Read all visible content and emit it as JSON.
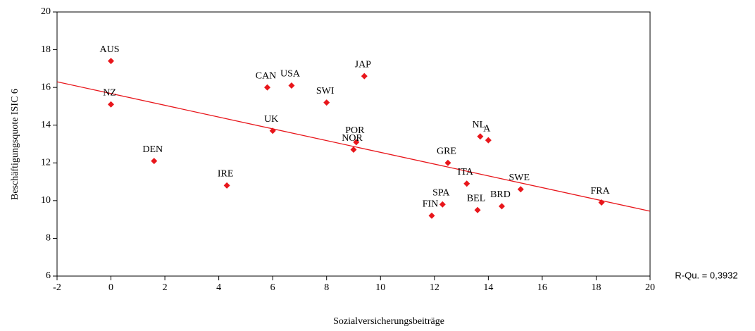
{
  "chart_data": {
    "type": "scatter",
    "xlabel": "Sozialversicherungsbeiträge",
    "ylabel": "Beschäftigungsquote ISIC 6",
    "labels": [
      "AUS",
      "NZ",
      "DEN",
      "IRE",
      "CAN",
      "USA",
      "UK",
      "SWI",
      "JAP",
      "POR",
      "NOR",
      "GRE",
      "ITA",
      "SPA",
      "FIN",
      "BEL",
      "BRD",
      "NL",
      "A",
      "SWE",
      "FRA"
    ],
    "x": [
      0,
      0,
      1.6,
      4.3,
      5.8,
      6.7,
      6.0,
      8.0,
      9.4,
      9.1,
      9.0,
      12.5,
      13.2,
      12.3,
      11.9,
      13.6,
      14.5,
      13.7,
      14.0,
      15.2,
      18.2
    ],
    "values": [
      17.4,
      15.1,
      12.1,
      10.8,
      16.0,
      16.1,
      13.7,
      15.2,
      16.6,
      13.1,
      12.7,
      12.0,
      10.9,
      9.8,
      9.2,
      9.5,
      9.7,
      13.4,
      13.2,
      10.6,
      9.9
    ],
    "color": "#e8161b",
    "trendline": {
      "x": [
        -2,
        20
      ],
      "y": [
        16.3,
        9.44
      ],
      "color": "#e8161b"
    },
    "annotation": "R-Qu. = 0,3932",
    "xlim": [
      -2,
      20
    ],
    "xticks": [
      -2,
      0,
      2,
      4,
      6,
      8,
      10,
      12,
      14,
      16,
      18,
      20
    ],
    "ylim": [
      6,
      20
    ],
    "yticks": [
      6,
      8,
      10,
      12,
      14,
      16,
      18,
      20
    ]
  }
}
